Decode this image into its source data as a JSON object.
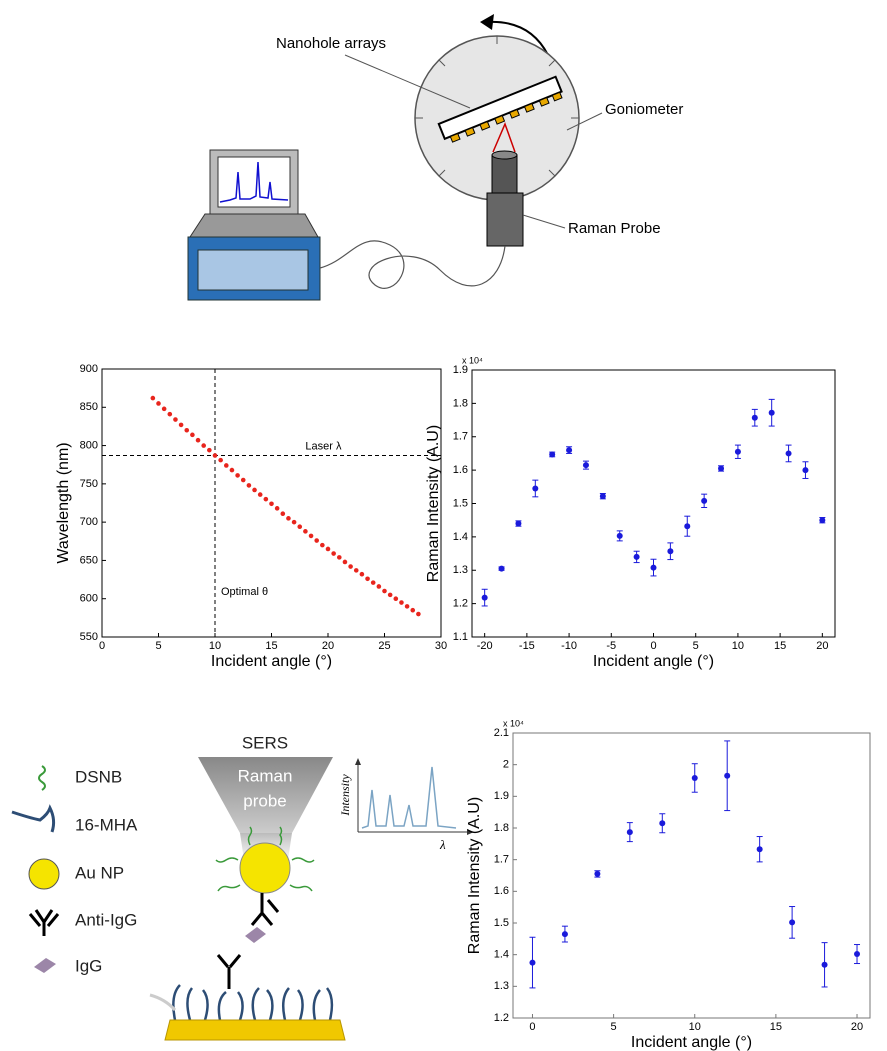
{
  "chart_data": [
    {
      "type": "scatter",
      "xlabel": "Incident angle (°)",
      "ylabel": "Wavelength (nm)",
      "x": [
        4.5,
        5,
        5.5,
        6,
        6.5,
        7,
        7.5,
        8,
        8.5,
        9,
        9.5,
        10,
        10.5,
        11,
        11.5,
        12,
        12.5,
        13,
        13.5,
        14,
        14.5,
        15,
        15.5,
        16,
        16.5,
        17,
        17.5,
        18,
        18.5,
        19,
        19.5,
        20,
        20.5,
        21,
        21.5,
        22,
        22.5,
        23,
        23.5,
        24,
        24.5,
        25,
        25.5,
        26,
        26.5,
        27,
        27.5,
        28
      ],
      "values": [
        862,
        855,
        848,
        841,
        834,
        827,
        820,
        814,
        807,
        800,
        794,
        787,
        781,
        774,
        768,
        761,
        755,
        748,
        742,
        736,
        730,
        724,
        718,
        711,
        705,
        700,
        694,
        688,
        682,
        676,
        670,
        665,
        659,
        654,
        648,
        642,
        637,
        632,
        626,
        621,
        616,
        610,
        605,
        600,
        595,
        590,
        585,
        580
      ],
      "color": "#e8251d",
      "xlim": [
        0,
        30
      ],
      "ylim": [
        550,
        900
      ],
      "xticks": [
        0,
        5,
        10,
        15,
        20,
        25,
        30
      ],
      "yticks": [
        550,
        600,
        650,
        700,
        750,
        800,
        850,
        900
      ],
      "annotations": [
        {
          "text": "Laser λ",
          "y": 787
        },
        {
          "text": "Optimal θ",
          "x": 10
        }
      ]
    },
    {
      "type": "errorbar",
      "xlabel": "Incident angle (°)",
      "ylabel": "Raman Intensity (A.U)",
      "y_multiplier": "x 10⁴",
      "x": [
        -20,
        -18,
        -16,
        -14,
        -12,
        -10,
        -8,
        -6,
        -4,
        -2,
        0,
        2,
        4,
        6,
        8,
        10,
        12,
        14,
        16,
        18,
        20
      ],
      "values": [
        1.218,
        1.305,
        1.44,
        1.545,
        1.647,
        1.66,
        1.615,
        1.522,
        1.403,
        1.34,
        1.308,
        1.357,
        1.432,
        1.508,
        1.605,
        1.655,
        1.757,
        1.772,
        1.65,
        1.6,
        1.45
      ],
      "errors": [
        0.025,
        0.005,
        0.008,
        0.025,
        0.007,
        0.01,
        0.012,
        0.008,
        0.015,
        0.017,
        0.025,
        0.025,
        0.03,
        0.02,
        0.008,
        0.02,
        0.025,
        0.04,
        0.025,
        0.025,
        0.008
      ],
      "color": "#1a1adb",
      "xlim": [
        -21.5,
        21.5
      ],
      "ylim": [
        1.1,
        1.9
      ],
      "xticks": [
        -20,
        -15,
        -10,
        -5,
        0,
        5,
        10,
        15,
        20
      ],
      "yticks": [
        1.1,
        1.2,
        1.3,
        1.4,
        1.5,
        1.6,
        1.7,
        1.8,
        1.9
      ]
    },
    {
      "type": "errorbar",
      "xlabel": "Incident angle (°)",
      "ylabel": "Raman Intensity (A.U)",
      "y_multiplier": "x 10⁴",
      "x": [
        0,
        2,
        4,
        6,
        8,
        10,
        12,
        14,
        16,
        18,
        20
      ],
      "values": [
        1.375,
        1.465,
        1.655,
        1.787,
        1.815,
        1.958,
        1.965,
        1.733,
        1.502,
        1.368,
        1.402
      ],
      "errors": [
        0.08,
        0.025,
        0.01,
        0.03,
        0.03,
        0.045,
        0.11,
        0.04,
        0.05,
        0.07,
        0.03
      ],
      "color": "#1a1adb",
      "xlim": [
        -1.2,
        20.8
      ],
      "ylim": [
        1.2,
        2.1
      ],
      "xticks": [
        0,
        5,
        10,
        15,
        20
      ],
      "yticks": [
        1.2,
        1.3,
        1.4,
        1.5,
        1.6,
        1.7,
        1.8,
        1.9,
        2,
        2.1
      ]
    }
  ],
  "diagram": {
    "setup_labels": {
      "nanohole": "Nanohole arrays",
      "goniometer": "Goniometer",
      "probe": "Raman Probe"
    },
    "sers": {
      "title": "SERS",
      "probe_label": [
        "Raman",
        "probe"
      ],
      "inset_ylabel": "Intensity",
      "inset_xlabel": "λ"
    },
    "legend": [
      "DSNB",
      "16-MHA",
      "Au NP",
      "Anti-IgG",
      "IgG"
    ]
  }
}
